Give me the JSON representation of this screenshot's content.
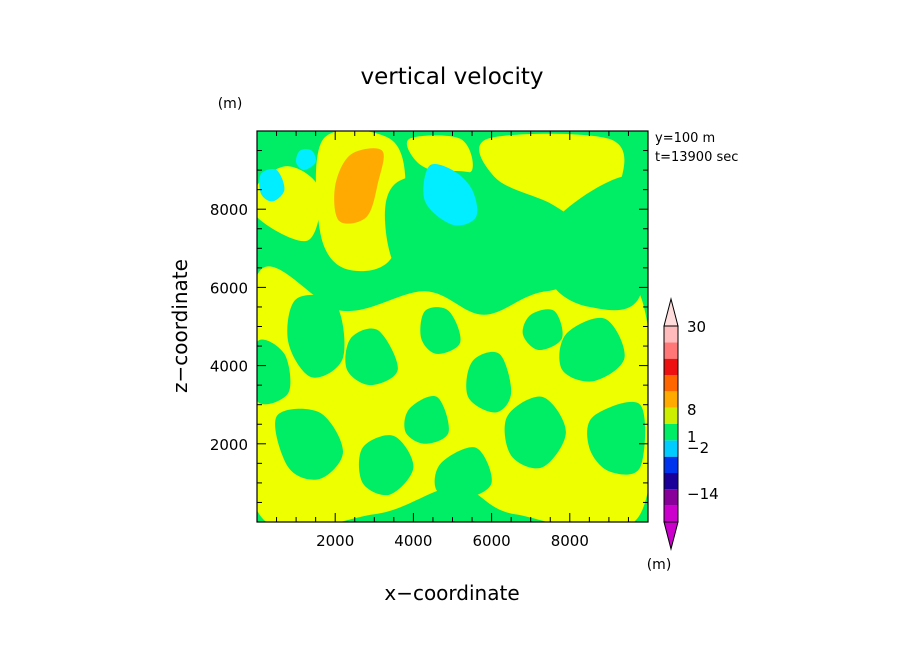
{
  "chart_data": {
    "type": "heatmap",
    "title": "vertical velocity",
    "xlabel": "x−coordinate",
    "ylabel": "z−coordinate",
    "y_unit": "(m)",
    "info_lines": [
      "y=100  m",
      "t=13900 sec"
    ],
    "xlim": [
      0,
      10000
    ],
    "ylim": [
      0,
      10000
    ],
    "x_ticks": [
      2000,
      4000,
      6000,
      8000
    ],
    "y_ticks": [
      2000,
      4000,
      6000,
      8000
    ],
    "x_tick_labels": [
      "2000",
      "4000",
      "6000",
      "8000"
    ],
    "y_tick_labels": [
      "2000",
      "4000",
      "6000",
      "8000"
    ],
    "colors": {
      "background": "#00ee66",
      "patches": "#eeff00",
      "orange": "#ffaa00",
      "cyan": "#00eeff"
    },
    "regions": [
      {
        "level": "1..2",
        "color": "#eeff00",
        "points": [
          [
            0,
            6300
          ],
          [
            2200,
            5400
          ],
          [
            4300,
            5900
          ],
          [
            5800,
            5300
          ],
          [
            7400,
            5900
          ],
          [
            9800,
            5800
          ],
          [
            9800,
            200
          ],
          [
            6600,
            200
          ],
          [
            5100,
            900
          ],
          [
            3000,
            200
          ],
          [
            0,
            300
          ]
        ]
      },
      {
        "level": "1..2",
        "color": "#eeff00",
        "points": [
          [
            0,
            7800
          ],
          [
            1300,
            7200
          ],
          [
            1600,
            8500
          ],
          [
            800,
            9100
          ],
          [
            0,
            8600
          ]
        ]
      },
      {
        "level": "1..2",
        "color": "#eeff00",
        "points": [
          [
            1700,
            9800
          ],
          [
            3400,
            9800
          ],
          [
            3800,
            8500
          ],
          [
            3400,
            6700
          ],
          [
            2200,
            6500
          ],
          [
            1600,
            7500
          ]
        ]
      },
      {
        "level": "1..2",
        "color": "#eeff00",
        "points": [
          [
            5900,
            9800
          ],
          [
            9000,
            9800
          ],
          [
            9300,
            8700
          ],
          [
            8500,
            7700
          ],
          [
            7400,
            8200
          ],
          [
            6100,
            8800
          ]
        ]
      },
      {
        "level": "1..2",
        "color": "#eeff00",
        "points": [
          [
            3900,
            9800
          ],
          [
            5200,
            9800
          ],
          [
            5500,
            9000
          ],
          [
            4800,
            8900
          ],
          [
            4100,
            9200
          ]
        ]
      },
      {
        "level": "0..1",
        "color": "#00ee66",
        "points": [
          [
            3600,
            8700
          ],
          [
            5600,
            8900
          ],
          [
            6100,
            7700
          ],
          [
            5600,
            6400
          ],
          [
            3900,
            6100
          ],
          [
            3300,
            7400
          ]
        ]
      },
      {
        "level": "0..1",
        "color": "#00ee66",
        "points": [
          [
            7700,
            7800
          ],
          [
            9800,
            8800
          ],
          [
            9800,
            5800
          ],
          [
            8500,
            5500
          ],
          [
            7500,
            6200
          ]
        ]
      },
      {
        "level": "0..1",
        "color": "#00ee66",
        "points": [
          [
            1000,
            5700
          ],
          [
            2000,
            5600
          ],
          [
            2200,
            4200
          ],
          [
            1400,
            3700
          ],
          [
            800,
            4600
          ]
        ]
      },
      {
        "level": "0..1",
        "color": "#00ee66",
        "points": [
          [
            0,
            4600
          ],
          [
            700,
            4300
          ],
          [
            800,
            3300
          ],
          [
            0,
            3100
          ]
        ]
      },
      {
        "level": "0..1",
        "color": "#00ee66",
        "points": [
          [
            500,
            2700
          ],
          [
            1600,
            2800
          ],
          [
            2200,
            1800
          ],
          [
            1600,
            1100
          ],
          [
            800,
            1400
          ]
        ]
      },
      {
        "level": "0..1",
        "color": "#00ee66",
        "points": [
          [
            2400,
            4700
          ],
          [
            3100,
            4900
          ],
          [
            3600,
            3900
          ],
          [
            2900,
            3500
          ],
          [
            2300,
            3900
          ]
        ]
      },
      {
        "level": "0..1",
        "color": "#00ee66",
        "points": [
          [
            3900,
            2900
          ],
          [
            4600,
            3200
          ],
          [
            4900,
            2300
          ],
          [
            4300,
            2000
          ],
          [
            3800,
            2300
          ]
        ]
      },
      {
        "level": "0..1",
        "color": "#00ee66",
        "points": [
          [
            5500,
            4100
          ],
          [
            6200,
            4300
          ],
          [
            6500,
            3300
          ],
          [
            6100,
            2800
          ],
          [
            5400,
            3200
          ]
        ]
      },
      {
        "level": "0..1",
        "color": "#00ee66",
        "points": [
          [
            6400,
            2700
          ],
          [
            7300,
            3200
          ],
          [
            7900,
            2300
          ],
          [
            7300,
            1400
          ],
          [
            6500,
            1700
          ]
        ]
      },
      {
        "level": "0..1",
        "color": "#00ee66",
        "points": [
          [
            7900,
            4800
          ],
          [
            8900,
            5200
          ],
          [
            9400,
            4200
          ],
          [
            8600,
            3600
          ],
          [
            7800,
            3900
          ]
        ]
      },
      {
        "level": "0..1",
        "color": "#00ee66",
        "points": [
          [
            8600,
            2700
          ],
          [
            9800,
            3000
          ],
          [
            9800,
            1400
          ],
          [
            9000,
            1300
          ],
          [
            8500,
            1900
          ]
        ]
      },
      {
        "level": "0..1",
        "color": "#00ee66",
        "points": [
          [
            2700,
            1900
          ],
          [
            3500,
            2200
          ],
          [
            4000,
            1400
          ],
          [
            3400,
            700
          ],
          [
            2700,
            1000
          ]
        ]
      },
      {
        "level": "0..1",
        "color": "#00ee66",
        "points": [
          [
            4700,
            1500
          ],
          [
            5600,
            1900
          ],
          [
            6000,
            1000
          ],
          [
            5300,
            600
          ],
          [
            4600,
            800
          ]
        ]
      },
      {
        "level": "0..1",
        "color": "#00ee66",
        "points": [
          [
            4300,
            5400
          ],
          [
            4900,
            5400
          ],
          [
            5200,
            4600
          ],
          [
            4600,
            4300
          ],
          [
            4200,
            4700
          ]
        ]
      },
      {
        "level": "0..1",
        "color": "#00ee66",
        "points": [
          [
            7000,
            5300
          ],
          [
            7600,
            5400
          ],
          [
            7800,
            4700
          ],
          [
            7200,
            4400
          ],
          [
            6800,
            4800
          ]
        ]
      },
      {
        "level": "0..1",
        "color": "#00ee66",
        "points": [
          [
            9100,
            7800
          ],
          [
            9800,
            7800
          ],
          [
            9800,
            6300
          ],
          [
            9200,
            6600
          ]
        ]
      },
      {
        "level": "2..4",
        "color": "#ffaa00",
        "points": [
          [
            2400,
            9400
          ],
          [
            3200,
            9500
          ],
          [
            3100,
            8700
          ],
          [
            2800,
            7800
          ],
          [
            2100,
            7700
          ],
          [
            2000,
            8600
          ]
        ]
      },
      {
        "level": "-1..0",
        "color": "#00eeff",
        "points": [
          [
            4400,
            9100
          ],
          [
            5000,
            9000
          ],
          [
            5500,
            8500
          ],
          [
            5600,
            7800
          ],
          [
            5000,
            7600
          ],
          [
            4300,
            8200
          ]
        ]
      },
      {
        "level": "-1..0",
        "color": "#00eeff",
        "points": [
          [
            100,
            8900
          ],
          [
            500,
            9000
          ],
          [
            700,
            8500
          ],
          [
            400,
            8200
          ],
          [
            100,
            8400
          ]
        ]
      },
      {
        "level": "-1..0",
        "color": "#00eeff",
        "points": [
          [
            1100,
            9500
          ],
          [
            1400,
            9500
          ],
          [
            1500,
            9200
          ],
          [
            1200,
            9000
          ],
          [
            1000,
            9200
          ]
        ]
      }
    ],
    "colorbar": {
      "unit": "(m)",
      "labels": [
        {
          "text": "30",
          "value": 30
        },
        {
          "text": "8",
          "value": 8
        },
        {
          "text": "1",
          "value": 1
        },
        {
          "text": "−2",
          "value": -2
        },
        {
          "text": "−14",
          "value": -14
        }
      ],
      "bands": [
        {
          "color": "#cc00cc"
        },
        {
          "color": "#880099"
        },
        {
          "color": "#1a0099"
        },
        {
          "color": "#0033ee"
        },
        {
          "color": "#00ccff"
        },
        {
          "color": "#00ee66"
        },
        {
          "color": "#ccee00"
        },
        {
          "color": "#ffaa00"
        },
        {
          "color": "#ff6600"
        },
        {
          "color": "#ee1111"
        },
        {
          "color": "#ff7777"
        },
        {
          "color": "#ffbbbb"
        }
      ],
      "top_arrow_color": "#ffdddd",
      "bottom_arrow_color": "#cc00cc"
    }
  }
}
